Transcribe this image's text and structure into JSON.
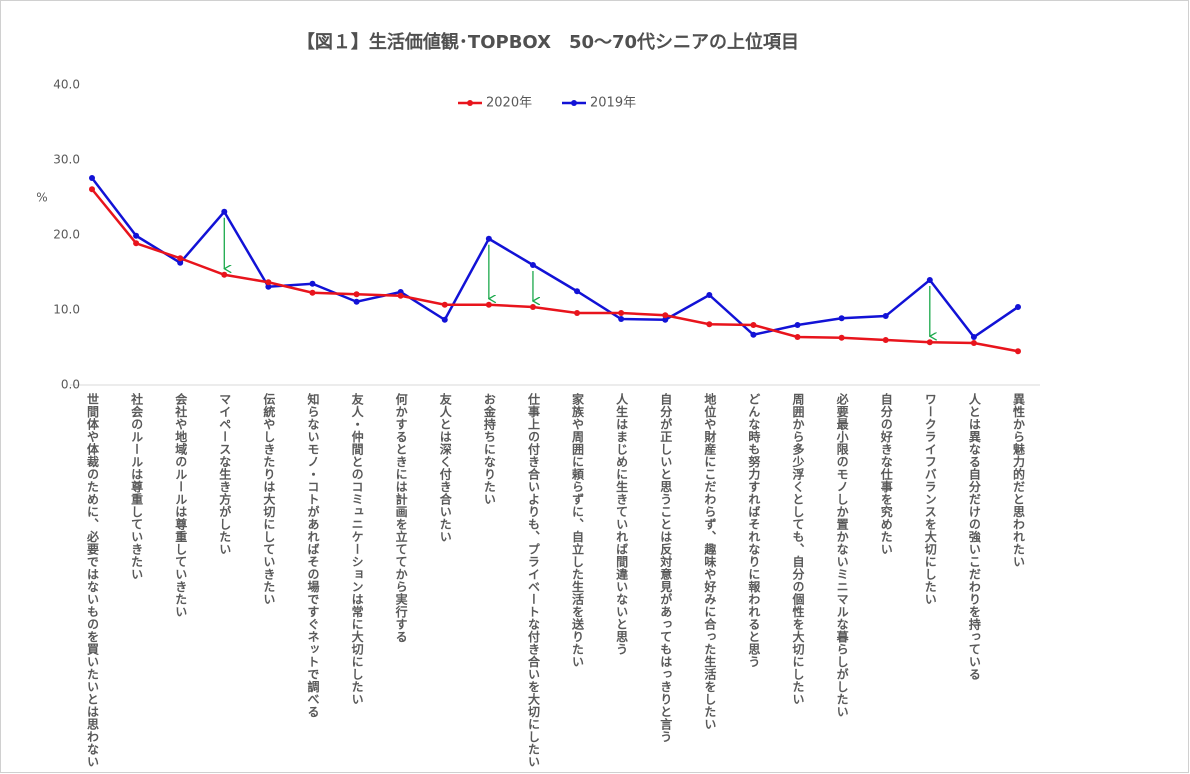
{
  "chart_data": {
    "type": "line",
    "title": "【図１】生活価値観･TOPBOX　50～70代シニアの上位項目",
    "y_label": "%",
    "categories": [
      "世間体や体裁のために、必要ではないものを買いたいとは思わない",
      "社会のルールは尊重していきたい",
      "会社や地域のルールは尊重していきたい",
      "マイペースな生き方がしたい",
      "伝統やしきたりは大切にしていきたい",
      "知らないモノ・コトがあればその場ですぐネットで調べる",
      "友人・仲間とのコミュニケーションは常に大切にしたい",
      "何かするときには計画を立ててから実行する",
      "友人とは深く付き合いたい",
      "お金持ちになりたい",
      "仕事上の付き合いよりも、プライベートな付き合いを大切にしたい",
      "家族や周囲に頼らずに、自立した生活を送りたい",
      "人生はまじめに生きていれば間違いないと思う",
      "自分が正しいと思うことは反対意見があってもはっきりと言う",
      "地位や財産にこだわらず、趣味や好みに合った生活をしたい",
      "どんな時も努力すればそれなりに報われると思う",
      "周囲から多少浮くとしても、自分の個性を大切にしたい",
      "必要最小限のモノしか置かないミニマルな暮らしがしたい",
      "自分の好きな仕事を究めたい",
      "ワークライフバランスを大切にしたい",
      "人とは異なる自分だけの強いこだわりを持っている",
      "異性から魅力的だと思われたい"
    ],
    "series": [
      {
        "name": "2020年",
        "color": "#e8141c",
        "values": [
          26.1,
          18.9,
          16.9,
          14.7,
          13.7,
          12.3,
          12.1,
          11.9,
          10.7,
          10.7,
          10.4,
          9.6,
          9.6,
          9.3,
          8.1,
          8.0,
          6.4,
          6.3,
          6.0,
          5.7,
          5.6,
          4.5
        ]
      },
      {
        "name": "2019年",
        "color": "#1212d6",
        "values": [
          27.6,
          19.9,
          16.3,
          23.1,
          13.1,
          13.5,
          11.1,
          12.4,
          8.7,
          19.5,
          16.0,
          12.5,
          8.8,
          8.7,
          12.0,
          6.7,
          8.0,
          8.9,
          9.2,
          14.0,
          6.4,
          10.4
        ]
      }
    ],
    "ylim": [
      0,
      40
    ],
    "yticks": [
      {
        "value": 0,
        "label": "0.0"
      },
      {
        "value": 10,
        "label": "10.0"
      },
      {
        "value": 20,
        "label": "20.0"
      },
      {
        "value": 30,
        "label": "30.0"
      },
      {
        "value": 40,
        "label": "40.0"
      }
    ],
    "grid": false,
    "legend": "top"
  }
}
